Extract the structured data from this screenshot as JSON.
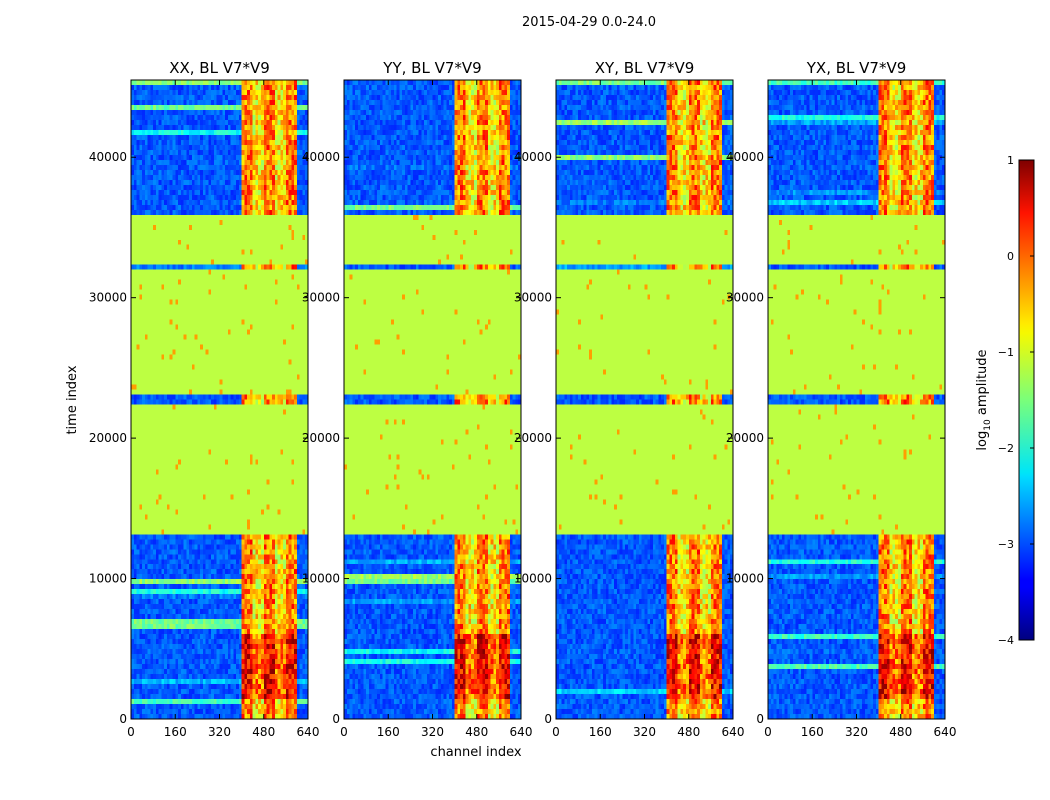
{
  "figure": {
    "suptitle": "2015-04-29 0.0-24.0",
    "ylabel": "time index",
    "xlabel": "channel index"
  },
  "colorbar": {
    "label_prefix": "log",
    "label_sub": "10",
    "label_suffix": " amplitude",
    "ticks": [
      1,
      0,
      -1,
      -2,
      -3,
      -4
    ],
    "tick_labels": [
      "1",
      "0",
      "−1",
      "−2",
      "−3",
      "−4"
    ],
    "range": [
      -4,
      1
    ],
    "colormap": "jet"
  },
  "chart_data": {
    "type": "heatmap",
    "title": "2015-04-29 0.0-24.0",
    "xlabel": "channel index",
    "ylabel": "time index",
    "xlim": [
      0,
      640
    ],
    "ylim": [
      0,
      45500
    ],
    "xticks": [
      0,
      160,
      320,
      480,
      640
    ],
    "yticks": [
      0,
      10000,
      20000,
      30000,
      40000
    ],
    "ytick_labels": [
      "0",
      "10000",
      "20000",
      "30000",
      "40000"
    ],
    "value_label": "log10 amplitude",
    "value_range": [
      -4,
      1
    ],
    "panels": [
      {
        "title": "XX, BL V7*V9",
        "pol": "XX"
      },
      {
        "title": "YY, BL V7*V9",
        "pol": "YY"
      },
      {
        "title": "XY, BL V7*V9",
        "pol": "XY"
      },
      {
        "title": "YX, BL V7*V9",
        "pol": "YX"
      }
    ],
    "flagged_time_ranges": [
      [
        13300,
        22500
      ],
      [
        23200,
        32000
      ],
      [
        32500,
        35800
      ]
    ],
    "flagged_value": -1.2,
    "rfi_channel_range": [
      400,
      600
    ],
    "background_value": -3.2
  }
}
